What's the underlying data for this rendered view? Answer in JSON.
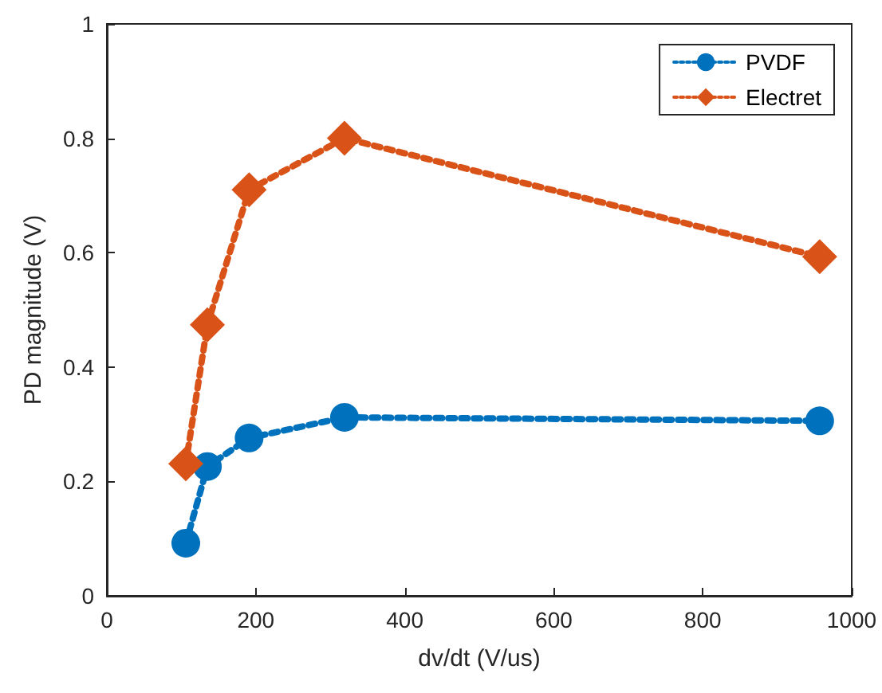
{
  "chart_data": {
    "type": "line",
    "xlabel": "dv/dt (V/us)",
    "ylabel": "PD magnitude (V)",
    "x": [
      106,
      135,
      191,
      319,
      957
    ],
    "series": [
      {
        "name": "PVDF",
        "color": "#0072bd",
        "marker": "circle",
        "values": [
          0.092,
          0.226,
          0.276,
          0.312,
          0.306
        ]
      },
      {
        "name": "Electret",
        "color": "#d95319",
        "marker": "diamond",
        "values": [
          0.231,
          0.474,
          0.71,
          0.8,
          0.593
        ]
      }
    ],
    "xlim": [
      0,
      1000
    ],
    "xticks": [
      0,
      200,
      400,
      600,
      800,
      1000
    ],
    "ylim": [
      0,
      1
    ],
    "yticks": [
      0,
      0.2,
      0.4,
      0.6,
      0.8,
      1
    ],
    "grid": false,
    "legend": "top right",
    "line_style": "dotted"
  }
}
